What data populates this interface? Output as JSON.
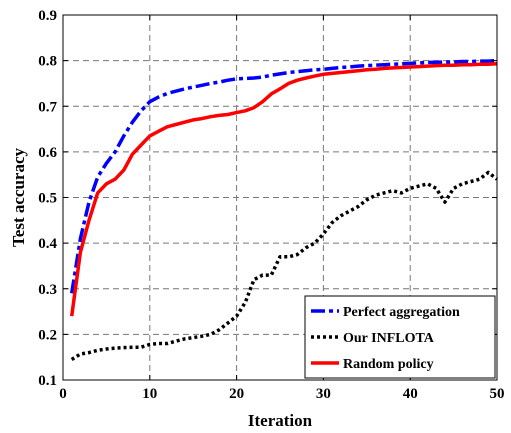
{
  "chart_data": {
    "type": "line",
    "xlabel": "Iteration",
    "ylabel": "Test accuracy",
    "xlim": [
      0,
      50
    ],
    "ylim": [
      0.1,
      0.9
    ],
    "xticks": [
      0,
      10,
      20,
      30,
      40,
      50
    ],
    "yticks": [
      0.1,
      0.2,
      0.3,
      0.4,
      0.5,
      0.6,
      0.7,
      0.8,
      0.9
    ],
    "xtick_labels": [
      "0",
      "10",
      "20",
      "30",
      "40",
      "50"
    ],
    "ytick_labels": [
      "0.1",
      "0.2",
      "0.3",
      "0.4",
      "0.5",
      "0.6",
      "0.7",
      "0.8",
      "0.9"
    ],
    "grid": true,
    "legend_position": "bottom-right",
    "x": [
      1,
      2,
      3,
      4,
      5,
      6,
      7,
      8,
      9,
      10,
      11,
      12,
      13,
      14,
      15,
      16,
      17,
      18,
      19,
      20,
      21,
      22,
      23,
      24,
      25,
      26,
      27,
      28,
      29,
      30,
      31,
      32,
      33,
      34,
      35,
      36,
      37,
      38,
      39,
      40,
      41,
      42,
      43,
      44,
      45,
      46,
      47,
      48,
      49,
      50
    ],
    "series": [
      {
        "name": "Perfect aggregation",
        "color": "#0000ff",
        "style": "dashdot",
        "values": [
          0.29,
          0.41,
          0.49,
          0.545,
          0.575,
          0.6,
          0.635,
          0.665,
          0.69,
          0.71,
          0.72,
          0.728,
          0.733,
          0.738,
          0.742,
          0.746,
          0.75,
          0.753,
          0.757,
          0.76,
          0.761,
          0.762,
          0.764,
          0.768,
          0.771,
          0.774,
          0.776,
          0.778,
          0.78,
          0.781,
          0.783,
          0.785,
          0.786,
          0.788,
          0.789,
          0.79,
          0.791,
          0.792,
          0.793,
          0.794,
          0.795,
          0.796,
          0.796,
          0.797,
          0.797,
          0.798,
          0.798,
          0.799,
          0.799,
          0.8
        ]
      },
      {
        "name": "Our INFLOTA",
        "color": "#000000",
        "style": "dotted",
        "values": [
          0.145,
          0.157,
          0.16,
          0.165,
          0.168,
          0.17,
          0.171,
          0.172,
          0.172,
          0.178,
          0.18,
          0.18,
          0.185,
          0.19,
          0.193,
          0.196,
          0.2,
          0.21,
          0.225,
          0.24,
          0.27,
          0.32,
          0.33,
          0.33,
          0.37,
          0.37,
          0.375,
          0.39,
          0.4,
          0.42,
          0.445,
          0.46,
          0.47,
          0.48,
          0.495,
          0.505,
          0.51,
          0.515,
          0.51,
          0.52,
          0.525,
          0.53,
          0.52,
          0.49,
          0.52,
          0.53,
          0.535,
          0.54,
          0.555,
          0.54
        ]
      },
      {
        "name": "Random policy",
        "color": "#ff0000",
        "style": "solid",
        "values": [
          0.24,
          0.38,
          0.45,
          0.51,
          0.53,
          0.54,
          0.56,
          0.595,
          0.615,
          0.635,
          0.645,
          0.655,
          0.66,
          0.665,
          0.67,
          0.673,
          0.677,
          0.68,
          0.682,
          0.686,
          0.69,
          0.697,
          0.71,
          0.727,
          0.738,
          0.75,
          0.757,
          0.762,
          0.766,
          0.77,
          0.772,
          0.774,
          0.776,
          0.778,
          0.78,
          0.781,
          0.783,
          0.784,
          0.785,
          0.786,
          0.787,
          0.788,
          0.789,
          0.79,
          0.79,
          0.791,
          0.791,
          0.792,
          0.792,
          0.793
        ]
      }
    ]
  }
}
